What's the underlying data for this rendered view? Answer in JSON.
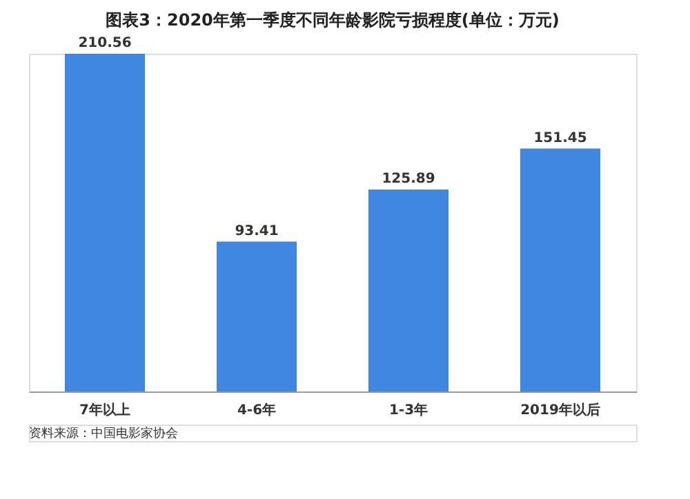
{
  "chart_data": {
    "type": "bar",
    "title": "图表3：2020年第一季度不同年龄影院亏损程度(单位：万元)",
    "categories": [
      "7年以上",
      "4-6年",
      "1-3年",
      "2019年以后"
    ],
    "values": [
      210.56,
      93.41,
      125.89,
      151.45
    ],
    "color": "#3f87e0",
    "data_labels": true,
    "grid": false,
    "annotations": [
      "资料来源：中国电影家协会"
    ]
  }
}
